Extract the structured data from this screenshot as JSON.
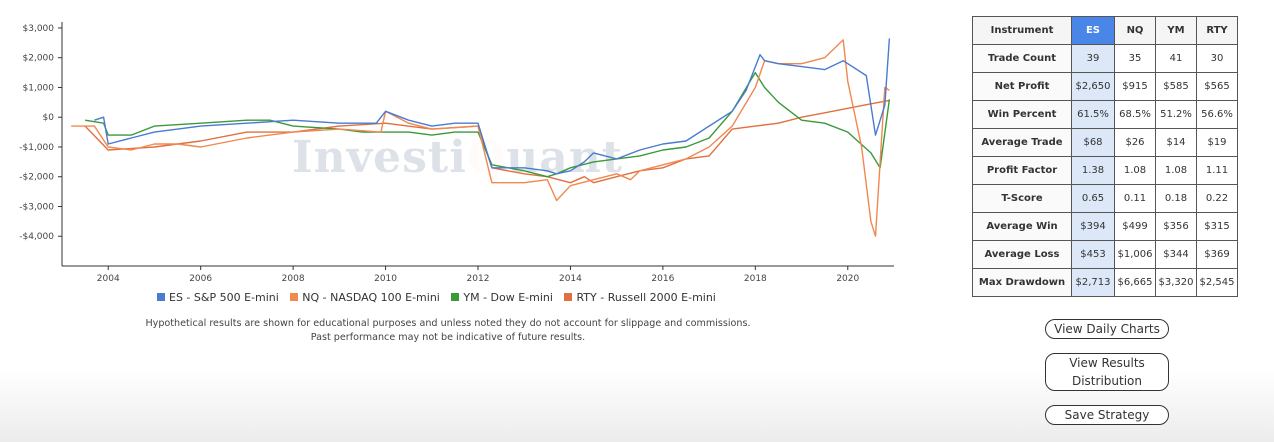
{
  "chart_data": {
    "type": "line",
    "title": "",
    "xlabel": "",
    "ylabel": "",
    "xlim": [
      2003.0,
      2021.0
    ],
    "ylim": [
      -5000,
      3200
    ],
    "y_ticks": [
      3000,
      2000,
      1000,
      0,
      -1000,
      -2000,
      -3000,
      -4000
    ],
    "y_tick_labels": [
      "$3,000",
      "$2,000",
      "$1,000",
      "$0",
      "-$1,000",
      "-$2,000",
      "-$3,000",
      "-$4,000"
    ],
    "x_ticks": [
      2004,
      2006,
      2008,
      2010,
      2012,
      2014,
      2016,
      2018,
      2020
    ],
    "x_tick_labels": [
      "2004",
      "2006",
      "2008",
      "2010",
      "2012",
      "2014",
      "2016",
      "2018",
      "2020"
    ],
    "grid": false,
    "legend_position": "bottom",
    "series": [
      {
        "name": "ES - S&P 500 E-mini",
        "color": "#4a7bd0",
        "x": [
          2003.7,
          2003.9,
          2004.0,
          2004.5,
          2005.0,
          2006.0,
          2007.0,
          2008.0,
          2009.0,
          2009.8,
          2010.0,
          2010.5,
          2011.0,
          2011.5,
          2012.0,
          2012.3,
          2013.0,
          2013.5,
          2013.7,
          2014.0,
          2014.3,
          2014.5,
          2015.0,
          2015.5,
          2016.0,
          2016.5,
          2017.0,
          2017.5,
          2017.8,
          2018.1,
          2018.2,
          2018.5,
          2019.0,
          2019.5,
          2019.9,
          2020.4,
          2020.6,
          2020.8,
          2020.9
        ],
        "y": [
          -100,
          0,
          -900,
          -700,
          -500,
          -300,
          -200,
          -100,
          -200,
          -200,
          200,
          -100,
          -300,
          -200,
          -200,
          -1700,
          -1700,
          -1800,
          -1900,
          -1800,
          -1500,
          -1200,
          -1400,
          -1100,
          -900,
          -800,
          -300,
          200,
          900,
          2100,
          1900,
          1800,
          1700,
          1600,
          1900,
          1400,
          -600,
          400,
          2650
        ]
      },
      {
        "name": "NQ - NASDAQ 100 E-mini",
        "color": "#f08850",
        "x": [
          2003.2,
          2003.7,
          2004.0,
          2004.5,
          2005.0,
          2005.5,
          2006.0,
          2007.0,
          2008.0,
          2009.0,
          2009.9,
          2010.0,
          2010.5,
          2011.0,
          2012.0,
          2012.3,
          2013.0,
          2013.5,
          2013.7,
          2014.0,
          2014.5,
          2015.0,
          2015.3,
          2015.5,
          2016.0,
          2016.5,
          2017.0,
          2017.5,
          2018.0,
          2018.2,
          2018.5,
          2019.0,
          2019.5,
          2019.9,
          2020.0,
          2020.3,
          2020.5,
          2020.6,
          2020.8,
          2020.9
        ],
        "y": [
          -300,
          -300,
          -1000,
          -1100,
          -900,
          -900,
          -1000,
          -700,
          -500,
          -400,
          -500,
          200,
          -200,
          -400,
          -300,
          -2200,
          -2200,
          -2100,
          -2800,
          -2300,
          -2100,
          -1900,
          -2100,
          -1800,
          -1600,
          -1400,
          -1000,
          -300,
          1000,
          1900,
          1800,
          1800,
          2000,
          2600,
          1200,
          -1000,
          -3500,
          -4000,
          1000,
          900
        ]
      },
      {
        "name": "YM - Dow E-mini",
        "color": "#3a9a3a",
        "x": [
          2003.5,
          2003.9,
          2004.0,
          2004.5,
          2005.0,
          2006.0,
          2007.0,
          2007.5,
          2008.0,
          2009.0,
          2009.5,
          2010.0,
          2010.5,
          2011.0,
          2011.5,
          2012.0,
          2012.3,
          2013.0,
          2013.5,
          2013.7,
          2014.0,
          2014.5,
          2015.0,
          2015.5,
          2016.0,
          2016.5,
          2017.0,
          2017.5,
          2018.0,
          2018.2,
          2018.5,
          2019.0,
          2019.5,
          2020.0,
          2020.5,
          2020.7,
          2020.9
        ],
        "y": [
          -100,
          -200,
          -600,
          -600,
          -300,
          -200,
          -100,
          -100,
          -300,
          -400,
          -500,
          -500,
          -500,
          -600,
          -500,
          -500,
          -1600,
          -1800,
          -2000,
          -1900,
          -1700,
          -1500,
          -1400,
          -1300,
          -1100,
          -1000,
          -700,
          200,
          1500,
          1000,
          500,
          -100,
          -200,
          -500,
          -1200,
          -1700,
          600
        ]
      },
      {
        "name": "RTY - Russell 2000 E-mini",
        "color": "#e07040",
        "x": [
          2003.5,
          2004.0,
          2005.0,
          2006.0,
          2007.0,
          2008.0,
          2009.0,
          2010.0,
          2011.0,
          2012.0,
          2012.3,
          2013.0,
          2013.5,
          2014.0,
          2014.3,
          2014.5,
          2015.0,
          2015.5,
          2016.0,
          2016.5,
          2017.0,
          2017.5,
          2018.0,
          2018.5,
          2019.0,
          2019.5,
          2020.0,
          2020.5,
          2020.9
        ],
        "y": [
          -300,
          -1100,
          -1000,
          -800,
          -500,
          -500,
          -300,
          -200,
          -400,
          -300,
          -1700,
          -1900,
          -2000,
          -2200,
          -2000,
          -2200,
          -2000,
          -1800,
          -1700,
          -1400,
          -1300,
          -400,
          -300,
          -200,
          0,
          150,
          300,
          450,
          565
        ]
      }
    ]
  },
  "watermark": {
    "text_left": "Investi",
    "text_q": "Q",
    "text_right": "uant"
  },
  "disclaimer": {
    "line1": "Hypothetical results are shown for educational purposes and unless noted they do not account for slippage and commissions.",
    "line2": "Past performance may not be indicative of future results."
  },
  "table": {
    "header_label": "Instrument",
    "columns": [
      "ES",
      "NQ",
      "YM",
      "RTY"
    ],
    "rows": [
      {
        "label": "Trade Count",
        "values": [
          "39",
          "35",
          "41",
          "30"
        ]
      },
      {
        "label": "Net Profit",
        "values": [
          "$2,650",
          "$915",
          "$585",
          "$565"
        ]
      },
      {
        "label": "Win Percent",
        "values": [
          "61.5%",
          "68.5%",
          "51.2%",
          "56.6%"
        ]
      },
      {
        "label": "Average Trade",
        "values": [
          "$68",
          "$26",
          "$14",
          "$19"
        ]
      },
      {
        "label": "Profit Factor",
        "values": [
          "1.38",
          "1.08",
          "1.08",
          "1.11"
        ]
      },
      {
        "label": "T-Score",
        "values": [
          "0.65",
          "0.11",
          "0.18",
          "0.22"
        ]
      },
      {
        "label": "Average Win",
        "values": [
          "$394",
          "$499",
          "$356",
          "$315"
        ]
      },
      {
        "label": "Average Loss",
        "values": [
          "$453",
          "$1,006",
          "$344",
          "$369"
        ]
      },
      {
        "label": "Max Drawdown",
        "values": [
          "$2,713",
          "$6,665",
          "$3,320",
          "$2,545"
        ]
      }
    ]
  },
  "buttons": {
    "daily": "View Daily Charts",
    "dist_line1": "View Results",
    "dist_line2": "Distribution",
    "save": "Save Strategy"
  }
}
